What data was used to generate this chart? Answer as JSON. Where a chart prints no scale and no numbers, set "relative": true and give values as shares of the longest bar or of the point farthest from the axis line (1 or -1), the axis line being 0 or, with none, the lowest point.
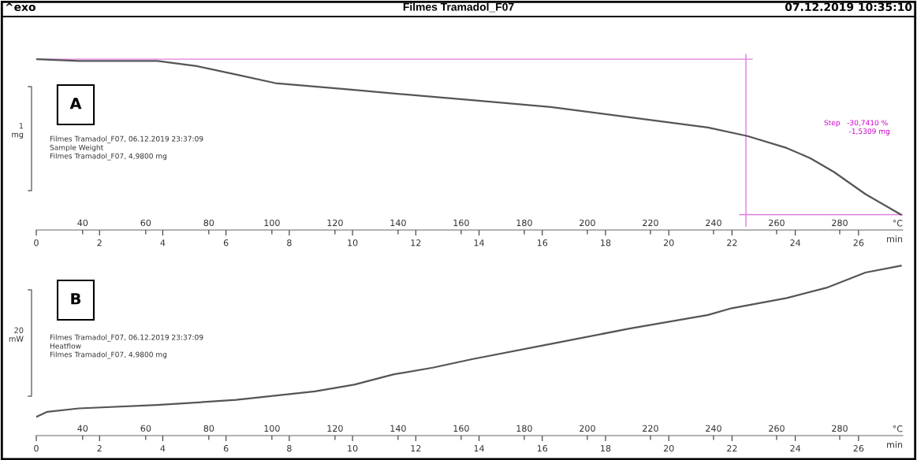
{
  "chart_data": [
    {
      "type": "line",
      "title": "Filmes Tramadol_F07",
      "relative": true,
      "ylabel": "1\nmg",
      "xlabel": "min",
      "x2label": "°C",
      "annotations": [
        "^exo",
        "07.12.2019 10:35:10",
        "A",
        "Filmes Tramadol_F07, 06.12.2019 23:37:09\nSample Weight\nFilmes Tramadol_F07, 4,9800 mg",
        "Step   -30,7410 %\n           -1,5309 mg"
      ],
      "x": [
        0,
        1.34,
        3.83,
        5.07,
        6.32,
        7.56,
        8.81,
        10.05,
        11.29,
        13.78,
        16.27,
        18.76,
        21.24,
        22.49,
        23.73,
        24.48,
        25.22,
        26.22,
        27.34
      ],
      "values": [
        1.0,
        0.99,
        0.99,
        0.96,
        0.91,
        0.86,
        0.84,
        0.82,
        0.8,
        0.76,
        0.72,
        0.66,
        0.6,
        0.55,
        0.48,
        0.42,
        0.34,
        0.21,
        0.09
      ],
      "color": "#555555",
      "xlim": [
        0,
        27.4
      ],
      "xticks": [
        0,
        2,
        4,
        6,
        8,
        10,
        12,
        14,
        16,
        18,
        20,
        22,
        24,
        26
      ],
      "x2lim": [
        25.3,
        300
      ],
      "x2ticks": [
        40,
        60,
        80,
        100,
        120,
        140,
        160,
        180,
        200,
        220,
        240,
        260,
        280
      ],
      "ref_lines": [
        {
          "axis": "y",
          "value": 1.0,
          "color": "#e07be0"
        },
        {
          "axis": "x",
          "value": 22.44,
          "color": "#e07be0"
        },
        {
          "axis": "y",
          "value": 0.09,
          "color": "#e07be0"
        }
      ],
      "grid": false,
      "legend": false
    },
    {
      "type": "line",
      "relative": true,
      "ylabel": "20\nmW",
      "xlabel": "min",
      "x2label": "°C",
      "annotations": [
        "B",
        "Filmes Tramadol_F07, 06.12.2019 23:37:09\nHeatflow\nFilmes Tramadol_F07, 4,9800 mg"
      ],
      "x": [
        0,
        0.35,
        1.34,
        3.83,
        6.32,
        8.81,
        10.05,
        11.29,
        12.54,
        13.78,
        16.27,
        18.76,
        21.24,
        21.99,
        23.73,
        24.98,
        26.22,
        27.34
      ],
      "values": [
        0.11,
        0.14,
        0.16,
        0.18,
        0.21,
        0.26,
        0.3,
        0.36,
        0.4,
        0.45,
        0.54,
        0.63,
        0.71,
        0.75,
        0.81,
        0.87,
        0.96,
        1.0
      ],
      "color": "#555555",
      "xlim": [
        0,
        27.4
      ],
      "xticks": [
        0,
        2,
        4,
        6,
        8,
        10,
        12,
        14,
        16,
        18,
        20,
        22,
        24,
        26
      ],
      "x2lim": [
        25.3,
        300
      ],
      "x2ticks": [
        40,
        60,
        80,
        100,
        120,
        140,
        160,
        180,
        200,
        220,
        240,
        260,
        280
      ],
      "grid": false,
      "legend": false
    }
  ]
}
